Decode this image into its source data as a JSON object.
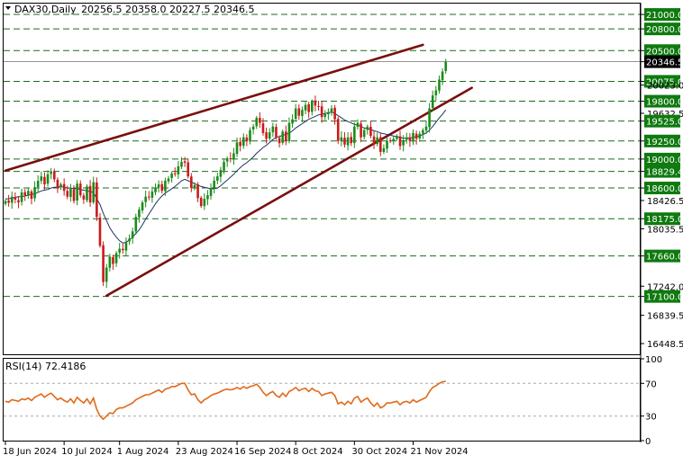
{
  "header": {
    "symbol": "DAX30,Daily",
    "ohlc": "20256.5 20358.0 20227.5 20346.5"
  },
  "rsi_header": "RSI(14) 72.4186",
  "colors": {
    "bull": "#1a8c1a",
    "bear": "#cc1a1a",
    "ma": "#1a3566",
    "channel": "#7a0f0f",
    "level_line": "#1c6b1c",
    "level_box": "#0f7a0f",
    "rsi": "#e06a1a",
    "current_box": "#000000"
  },
  "chart_data": [
    {
      "type": "candlestick",
      "x_labels": [
        "18 Jun 2024",
        "10 Jul 2024",
        "1 Aug 2024",
        "23 Aug 2024",
        "16 Sep 2024",
        "8 Oct 2024",
        "30 Oct 2024",
        "21 Nov 2024"
      ],
      "y_range": [
        16300,
        21150
      ],
      "price_labels": [
        "21000.0",
        "20800.0",
        "20500.0",
        "20346.5",
        "20075.0",
        "20023.0",
        "19800.0",
        "19632.5",
        "19525.0",
        "19250.0",
        "19000.0",
        "18829.4",
        "18600.0",
        "18426.5",
        "18175.0",
        "18035.5",
        "17660.0",
        "17242.0",
        "17100.0",
        "16839.5",
        "16448.5"
      ],
      "levels": [
        21000,
        20800,
        20500,
        20075,
        19800,
        19525,
        19250,
        19000,
        18829.4,
        18600,
        18175,
        17660,
        17100
      ],
      "current_price": 20346.5,
      "trendlines": [
        {
          "from": [
            0,
            18840
          ],
          "to": [
            128,
            20580
          ]
        },
        {
          "from": [
            31,
            17110
          ],
          "to": [
            143,
            19985
          ]
        }
      ],
      "close": [
        18420,
        18395,
        18480,
        18440,
        18400,
        18540,
        18500,
        18560,
        18450,
        18610,
        18700,
        18760,
        18650,
        18790,
        18830,
        18720,
        18600,
        18650,
        18560,
        18480,
        18590,
        18420,
        18660,
        18500,
        18440,
        18620,
        18400,
        18680,
        18200,
        17800,
        17300,
        17500,
        17650,
        17550,
        17700,
        17760,
        17740,
        17850,
        17900,
        18000,
        18200,
        18300,
        18400,
        18480,
        18470,
        18550,
        18600,
        18650,
        18560,
        18700,
        18730,
        18800,
        18790,
        18900,
        18960,
        18950,
        18760,
        18600,
        18640,
        18460,
        18350,
        18450,
        18500,
        18600,
        18700,
        18760,
        18850,
        18960,
        19010,
        19000,
        19080,
        19230,
        19180,
        19300,
        19250,
        19400,
        19450,
        19570,
        19500,
        19360,
        19280,
        19370,
        19450,
        19300,
        19220,
        19380,
        19250,
        19500,
        19550,
        19700,
        19600,
        19680,
        19750,
        19650,
        19800,
        19740,
        19720,
        19580,
        19620,
        19650,
        19700,
        19550,
        19250,
        19300,
        19200,
        19300,
        19220,
        19450,
        19500,
        19300,
        19400,
        19450,
        19320,
        19200,
        19300,
        19100,
        19150,
        19250,
        19250,
        19280,
        19320,
        19180,
        19260,
        19300,
        19250,
        19360,
        19280,
        19350,
        19400,
        19450,
        19700,
        19880,
        19950,
        20100,
        20210,
        20346.5
      ],
      "ma": [
        18450,
        18450,
        18460,
        18470,
        18480,
        18480,
        18490,
        18500,
        18510,
        18520,
        18540,
        18560,
        18570,
        18580,
        18600,
        18610,
        18610,
        18620,
        18610,
        18600,
        18600,
        18590,
        18590,
        18580,
        18570,
        18560,
        18550,
        18540,
        18450,
        18370,
        18250,
        18150,
        18050,
        17980,
        17920,
        17870,
        17840,
        17850,
        17880,
        17920,
        17970,
        18020,
        18090,
        18170,
        18240,
        18310,
        18380,
        18440,
        18490,
        18530,
        18560,
        18590,
        18620,
        18660,
        18700,
        18720,
        18700,
        18680,
        18660,
        18640,
        18620,
        18610,
        18600,
        18590,
        18590,
        18600,
        18630,
        18670,
        18710,
        18750,
        18790,
        18840,
        18880,
        18920,
        18950,
        18990,
        19030,
        19080,
        19120,
        19160,
        19190,
        19230,
        19270,
        19300,
        19310,
        19330,
        19340,
        19360,
        19390,
        19430,
        19460,
        19490,
        19520,
        19550,
        19570,
        19590,
        19610,
        19620,
        19630,
        19640,
        19650,
        19630,
        19600,
        19570,
        19540,
        19520,
        19500,
        19480,
        19470,
        19450,
        19430,
        19420,
        19410,
        19390,
        19380,
        19360,
        19350,
        19340,
        19330,
        19320,
        19310,
        19300,
        19290,
        19290,
        19290,
        19300,
        19310,
        19320,
        19340,
        19360,
        19400,
        19450,
        19510,
        19570,
        19620,
        19680
      ]
    },
    {
      "type": "line",
      "name": "RSI(14)",
      "y_ticks": [
        "100",
        "70",
        "30",
        "0"
      ],
      "y_range": [
        0,
        100
      ],
      "reference_levels": [
        70,
        30
      ],
      "values": [
        48,
        47,
        50,
        49,
        48,
        51,
        50,
        52,
        49,
        53,
        55,
        57,
        53,
        56,
        58,
        54,
        50,
        52,
        49,
        47,
        51,
        46,
        53,
        49,
        46,
        51,
        45,
        52,
        38,
        30,
        26,
        30,
        34,
        33,
        38,
        40,
        40,
        42,
        44,
        46,
        50,
        52,
        54,
        56,
        56,
        58,
        60,
        62,
        59,
        63,
        64,
        66,
        66,
        68,
        70,
        70,
        62,
        56,
        57,
        50,
        46,
        50,
        52,
        55,
        57,
        58,
        60,
        62,
        63,
        62,
        63,
        65,
        63,
        66,
        64,
        66,
        67,
        69,
        65,
        59,
        55,
        58,
        60,
        55,
        53,
        58,
        54,
        60,
        62,
        65,
        61,
        63,
        64,
        60,
        64,
        61,
        60,
        55,
        57,
        58,
        59,
        55,
        45,
        47,
        44,
        48,
        45,
        52,
        54,
        47,
        50,
        52,
        46,
        42,
        46,
        40,
        42,
        46,
        46,
        47,
        48,
        44,
        47,
        48,
        46,
        50,
        47,
        49,
        51,
        53,
        60,
        65,
        67,
        70,
        72,
        72.4186
      ]
    }
  ]
}
